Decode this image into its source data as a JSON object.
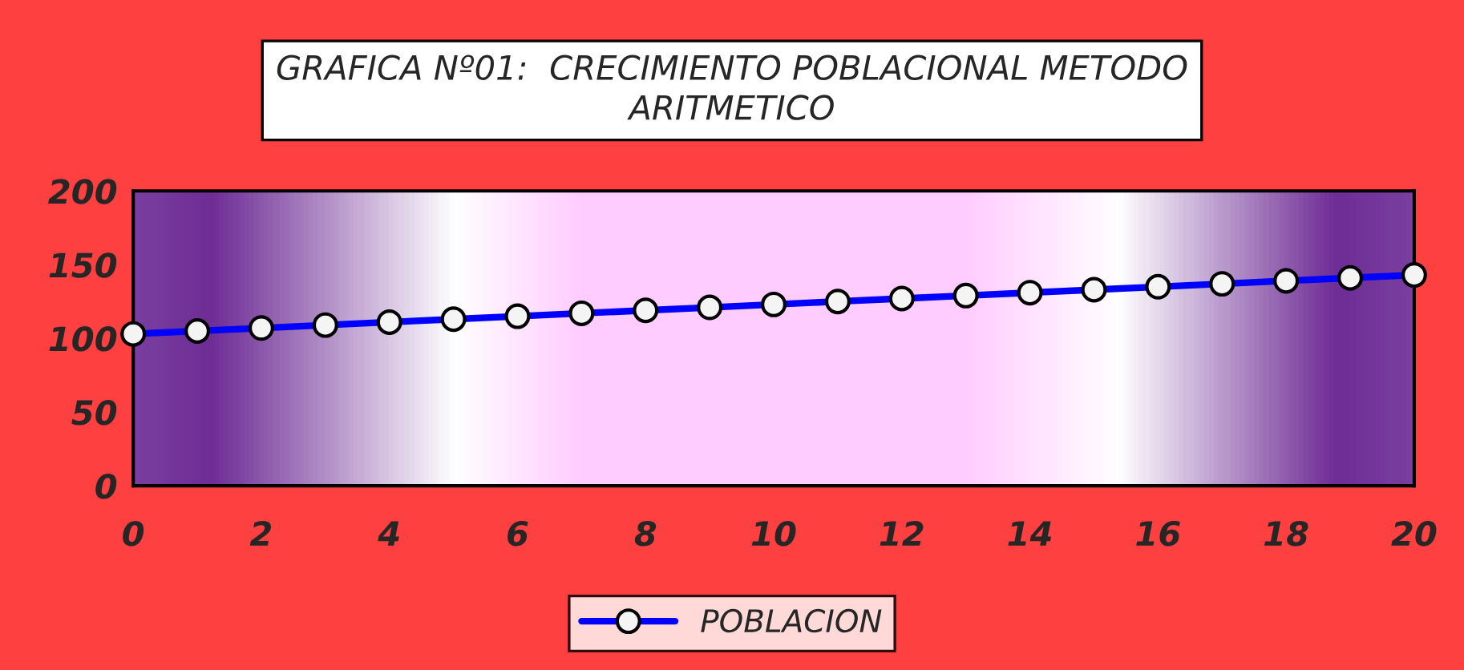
{
  "chart_data": {
    "type": "line",
    "title": "GRAFICA Nº01:  CRECIMIENTO POBLACIONAL METODO\nARITMETICO",
    "x": [
      0,
      1,
      2,
      3,
      4,
      5,
      6,
      7,
      8,
      9,
      10,
      11,
      12,
      13,
      14,
      15,
      16,
      17,
      18,
      19,
      20
    ],
    "series": [
      {
        "name": "POBLACION",
        "color": "#0000ff",
        "values": [
          103,
          105,
          107,
          109,
          111,
          113,
          115,
          117,
          119,
          121,
          123,
          125,
          127,
          129,
          131,
          133,
          135,
          137,
          139,
          141,
          143
        ]
      }
    ],
    "xlim": [
      0,
      20
    ],
    "xticks": [
      0,
      2,
      4,
      6,
      8,
      10,
      12,
      14,
      16,
      18,
      20
    ],
    "ylim": [
      0,
      200
    ],
    "yticks": [
      0,
      50,
      100,
      150,
      200
    ],
    "grid": false,
    "legend": "bottom",
    "marker": "circle",
    "line_style": "solid"
  }
}
